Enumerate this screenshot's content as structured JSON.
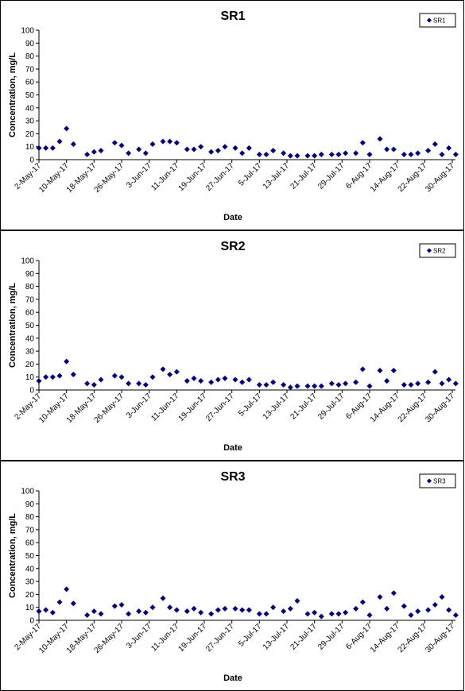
{
  "chart_data": [
    {
      "type": "scatter",
      "title": "SR1",
      "xlabel": "Date",
      "ylabel": "Concentration, mg/L",
      "ylim": [
        0,
        100
      ],
      "yticks": [
        0,
        10,
        20,
        30,
        40,
        50,
        60,
        70,
        80,
        90,
        100
      ],
      "xticks": [
        "2-May-17",
        "10-May-17",
        "18-May-17",
        "26-May-17",
        "3-Jun-17",
        "11-Jun-17",
        "19-Jun-17",
        "27-Jun-17",
        "5-Jul-17",
        "13-Jul-17",
        "21-Jul-17",
        "29-Jul-17",
        "6-Aug-17",
        "14-Aug-17",
        "22-Aug-17",
        "30-Aug-17"
      ],
      "xlim": [
        "2-May-17",
        "30-Aug-17"
      ],
      "grid": false,
      "legend": "top-right",
      "marker_color": "#000080",
      "series": [
        {
          "name": "SR1",
          "x": [
            "2-May-17",
            "4-May-17",
            "6-May-17",
            "8-May-17",
            "10-May-17",
            "12-May-17",
            "16-May-17",
            "18-May-17",
            "20-May-17",
            "24-May-17",
            "26-May-17",
            "28-May-17",
            "31-May-17",
            "2-Jun-17",
            "4-Jun-17",
            "7-Jun-17",
            "9-Jun-17",
            "11-Jun-17",
            "14-Jun-17",
            "16-Jun-17",
            "18-Jun-17",
            "21-Jun-17",
            "23-Jun-17",
            "25-Jun-17",
            "28-Jun-17",
            "30-Jun-17",
            "2-Jul-17",
            "5-Jul-17",
            "7-Jul-17",
            "9-Jul-17",
            "12-Jul-17",
            "14-Jul-17",
            "16-Jul-17",
            "19-Jul-17",
            "21-Jul-17",
            "23-Jul-17",
            "26-Jul-17",
            "28-Jul-17",
            "30-Jul-17",
            "2-Aug-17",
            "4-Aug-17",
            "6-Aug-17",
            "9-Aug-17",
            "11-Aug-17",
            "13-Aug-17",
            "16-Aug-17",
            "18-Aug-17",
            "20-Aug-17",
            "23-Aug-17",
            "25-Aug-17",
            "27-Aug-17",
            "29-Aug-17",
            "31-Aug-17"
          ],
          "y": [
            9,
            9,
            9,
            14,
            24,
            12,
            4,
            6,
            7,
            13,
            11,
            5,
            8,
            5,
            12,
            14,
            14,
            13,
            8,
            8,
            10,
            6,
            7,
            10,
            9,
            5,
            9,
            4,
            4,
            7,
            5,
            3,
            3,
            3,
            3,
            4,
            4,
            4,
            5,
            5,
            13,
            4,
            16,
            8,
            8,
            4,
            4,
            5,
            7,
            12,
            4,
            9,
            4
          ]
        }
      ]
    },
    {
      "type": "scatter",
      "title": "SR2",
      "xlabel": "Date",
      "ylabel": "Concentration, mg/L",
      "ylim": [
        0,
        100
      ],
      "yticks": [
        0,
        10,
        20,
        30,
        40,
        50,
        60,
        70,
        80,
        90,
        100
      ],
      "xticks": [
        "2-May-17",
        "10-May-17",
        "18-May-17",
        "26-May-17",
        "3-Jun-17",
        "11-Jun-17",
        "19-Jun-17",
        "27-Jun-17",
        "5-Jul-17",
        "13-Jul-17",
        "21-Jul-17",
        "29-Jul-17",
        "6-Aug-17",
        "14-Aug-17",
        "22-Aug-17",
        "30-Aug-17"
      ],
      "xlim": [
        "2-May-17",
        "30-Aug-17"
      ],
      "grid": false,
      "legend": "top-right",
      "marker_color": "#000080",
      "series": [
        {
          "name": "SR2",
          "x": [
            "2-May-17",
            "4-May-17",
            "6-May-17",
            "8-May-17",
            "10-May-17",
            "12-May-17",
            "16-May-17",
            "18-May-17",
            "20-May-17",
            "24-May-17",
            "26-May-17",
            "28-May-17",
            "31-May-17",
            "2-Jun-17",
            "4-Jun-17",
            "7-Jun-17",
            "9-Jun-17",
            "11-Jun-17",
            "14-Jun-17",
            "16-Jun-17",
            "18-Jun-17",
            "21-Jun-17",
            "23-Jun-17",
            "25-Jun-17",
            "28-Jun-17",
            "30-Jun-17",
            "2-Jul-17",
            "5-Jul-17",
            "7-Jul-17",
            "9-Jul-17",
            "12-Jul-17",
            "14-Jul-17",
            "16-Jul-17",
            "19-Jul-17",
            "21-Jul-17",
            "23-Jul-17",
            "26-Jul-17",
            "28-Jul-17",
            "30-Jul-17",
            "2-Aug-17",
            "4-Aug-17",
            "6-Aug-17",
            "9-Aug-17",
            "11-Aug-17",
            "13-Aug-17",
            "16-Aug-17",
            "18-Aug-17",
            "20-Aug-17",
            "23-Aug-17",
            "25-Aug-17",
            "27-Aug-17",
            "29-Aug-17",
            "31-Aug-17"
          ],
          "y": [
            7,
            10,
            10,
            11,
            22,
            12,
            5,
            4,
            8,
            11,
            10,
            5,
            5,
            4,
            10,
            16,
            12,
            14,
            7,
            9,
            7,
            6,
            8,
            9,
            8,
            6,
            8,
            4,
            4,
            6,
            4,
            2,
            3,
            3,
            3,
            3,
            5,
            4,
            5,
            6,
            16,
            3,
            15,
            7,
            15,
            4,
            4,
            5,
            6,
            14,
            5,
            8,
            5
          ]
        }
      ]
    },
    {
      "type": "scatter",
      "title": "SR3",
      "xlabel": "Date",
      "ylabel": "Concentration, mg/L",
      "ylim": [
        0,
        100
      ],
      "yticks": [
        0,
        10,
        20,
        30,
        40,
        50,
        60,
        70,
        80,
        90,
        100
      ],
      "xticks": [
        "2-May-17",
        "10-May-17",
        "18-May-17",
        "26-May-17",
        "3-Jun-17",
        "11-Jun-17",
        "19-Jun-17",
        "27-Jun-17",
        "5-Jul-17",
        "13-Jul-17",
        "21-Jul-17",
        "29-Jul-17",
        "6-Aug-17",
        "14-Aug-17",
        "22-Aug-17",
        "30-Aug-17"
      ],
      "xlim": [
        "2-May-17",
        "30-Aug-17"
      ],
      "grid": false,
      "legend": "top-right",
      "marker_color": "#000080",
      "series": [
        {
          "name": "SR3",
          "x": [
            "2-May-17",
            "4-May-17",
            "6-May-17",
            "8-May-17",
            "10-May-17",
            "12-May-17",
            "16-May-17",
            "18-May-17",
            "20-May-17",
            "24-May-17",
            "26-May-17",
            "28-May-17",
            "31-May-17",
            "2-Jun-17",
            "4-Jun-17",
            "7-Jun-17",
            "9-Jun-17",
            "11-Jun-17",
            "14-Jun-17",
            "16-Jun-17",
            "18-Jun-17",
            "21-Jun-17",
            "23-Jun-17",
            "25-Jun-17",
            "28-Jun-17",
            "30-Jun-17",
            "2-Jul-17",
            "5-Jul-17",
            "7-Jul-17",
            "9-Jul-17",
            "12-Jul-17",
            "14-Jul-17",
            "16-Jul-17",
            "19-Jul-17",
            "21-Jul-17",
            "23-Jul-17",
            "26-Jul-17",
            "28-Jul-17",
            "30-Jul-17",
            "2-Aug-17",
            "4-Aug-17",
            "6-Aug-17",
            "9-Aug-17",
            "11-Aug-17",
            "13-Aug-17",
            "16-Aug-17",
            "18-Aug-17",
            "20-Aug-17",
            "23-Aug-17",
            "25-Aug-17",
            "27-Aug-17",
            "29-Aug-17",
            "31-Aug-17"
          ],
          "y": [
            7,
            8,
            6,
            14,
            24,
            13,
            4,
            7,
            5,
            11,
            12,
            5,
            7,
            6,
            10,
            17,
            10,
            8,
            7,
            9,
            6,
            5,
            8,
            9,
            9,
            8,
            8,
            5,
            5,
            10,
            7,
            9,
            15,
            5,
            6,
            3,
            5,
            5,
            6,
            9,
            14,
            4,
            18,
            9,
            21,
            11,
            4,
            7,
            8,
            12,
            18,
            8,
            4
          ]
        }
      ]
    }
  ]
}
